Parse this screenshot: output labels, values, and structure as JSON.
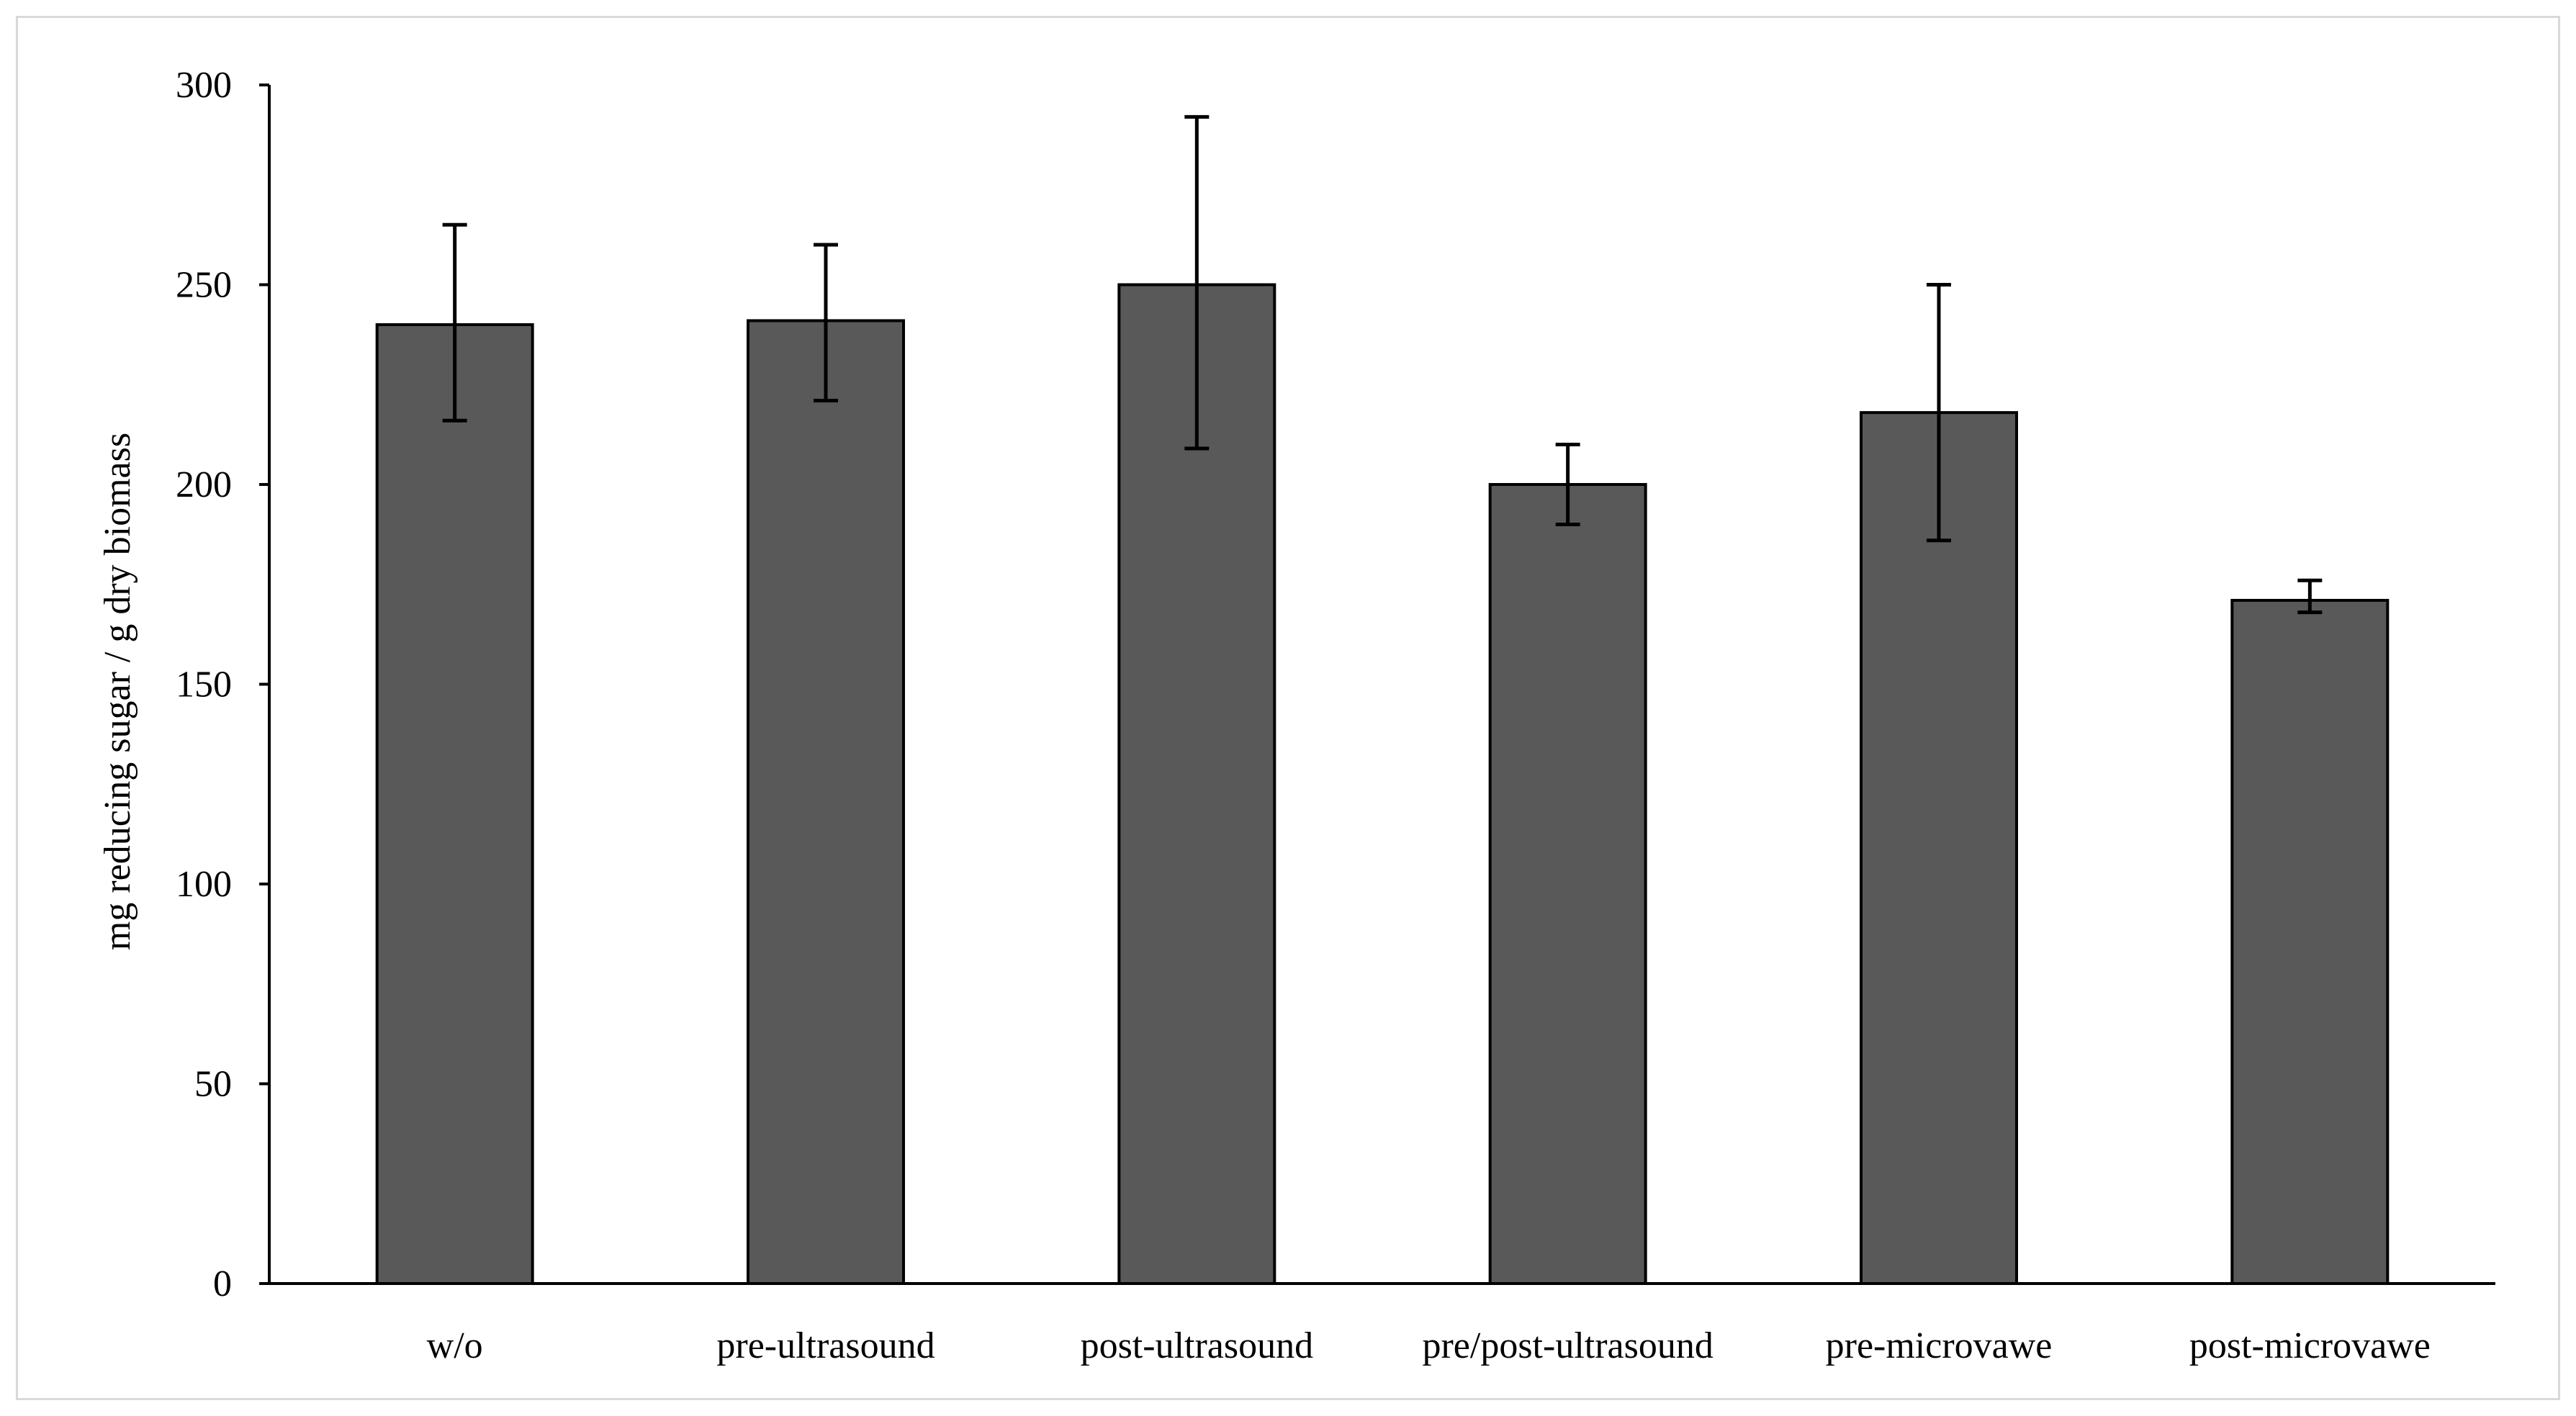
{
  "chart_data": {
    "type": "bar",
    "title": "",
    "xlabel": "",
    "ylabel": "mg reducing sugar / g dry biomass",
    "ylim": [
      0,
      300
    ],
    "yticks": [
      0,
      50,
      100,
      150,
      200,
      250,
      300
    ],
    "grid": false,
    "legend": "none",
    "categories": [
      "w/o",
      "pre-ultrasound",
      "post-ultrasound",
      "pre/post-ultrasound",
      "pre-microvawe",
      "post-microvawe"
    ],
    "values": [
      240,
      241,
      250,
      200,
      218,
      171
    ],
    "error_low": [
      24,
      20,
      41,
      10,
      32,
      3
    ],
    "error_high": [
      25,
      19,
      42,
      10,
      32,
      5
    ],
    "colors": {
      "bar_fill": "#595959",
      "bar_stroke": "#000000",
      "axis": "#000000",
      "error_bar": "#000000"
    }
  }
}
